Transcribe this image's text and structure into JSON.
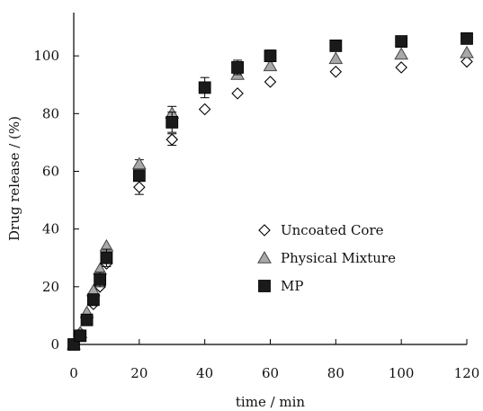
{
  "chart_data": {
    "type": "scatter",
    "title": "",
    "xlabel": "time / min",
    "ylabel": "Drug release / (%)",
    "xlim": [
      0,
      120
    ],
    "ylim": [
      0,
      115
    ],
    "xticks": [
      0,
      20,
      40,
      60,
      80,
      100,
      120
    ],
    "yticks": [
      0,
      20,
      40,
      60,
      80,
      100
    ],
    "grid": false,
    "legend_position": "center-right",
    "series": [
      {
        "name": "Uncoated Core",
        "marker": "diamond-open",
        "color": "#000000",
        "points": [
          {
            "x": 0,
            "y": 0
          },
          {
            "x": 2,
            "y": 4
          },
          {
            "x": 4,
            "y": 9
          },
          {
            "x": 6,
            "y": 14
          },
          {
            "x": 8,
            "y": 20
          },
          {
            "x": 10,
            "y": 28
          },
          {
            "x": 20,
            "y": 54.5,
            "err": 2.5
          },
          {
            "x": 30,
            "y": 71,
            "err": 2
          },
          {
            "x": 40,
            "y": 81.5
          },
          {
            "x": 50,
            "y": 87
          },
          {
            "x": 60,
            "y": 91
          },
          {
            "x": 80,
            "y": 94.5
          },
          {
            "x": 100,
            "y": 96
          },
          {
            "x": 120,
            "y": 98
          }
        ]
      },
      {
        "name": "Physical Mixture",
        "marker": "triangle-gray",
        "color": "#a8a8a8",
        "points": [
          {
            "x": 0,
            "y": 0
          },
          {
            "x": 2,
            "y": 4
          },
          {
            "x": 4,
            "y": 11
          },
          {
            "x": 6,
            "y": 18.5
          },
          {
            "x": 8,
            "y": 26
          },
          {
            "x": 10,
            "y": 34
          },
          {
            "x": 20,
            "y": 62.5,
            "err": 1.5
          },
          {
            "x": 30,
            "y": 80,
            "err": 2.5
          },
          {
            "x": 50,
            "y": 93.5
          },
          {
            "x": 60,
            "y": 96.5
          },
          {
            "x": 80,
            "y": 99
          },
          {
            "x": 100,
            "y": 100.5
          },
          {
            "x": 120,
            "y": 101
          }
        ]
      },
      {
        "name": "MP",
        "marker": "square-filled",
        "color": "#1a1a1a",
        "points": [
          {
            "x": 0,
            "y": 0
          },
          {
            "x": 2,
            "y": 3
          },
          {
            "x": 4,
            "y": 8.5
          },
          {
            "x": 6,
            "y": 15.5,
            "err": 2
          },
          {
            "x": 8,
            "y": 22.5,
            "err": 2.5
          },
          {
            "x": 10,
            "y": 30,
            "err": 3
          },
          {
            "x": 20,
            "y": 58.5,
            "err": 1.5
          },
          {
            "x": 30,
            "y": 77,
            "err": 3.5
          },
          {
            "x": 40,
            "y": 89,
            "err": 3.5
          },
          {
            "x": 50,
            "y": 96,
            "err": 2.5
          },
          {
            "x": 60,
            "y": 100,
            "err": 2
          },
          {
            "x": 80,
            "y": 103.5
          },
          {
            "x": 100,
            "y": 105
          },
          {
            "x": 120,
            "y": 106
          }
        ]
      }
    ]
  }
}
